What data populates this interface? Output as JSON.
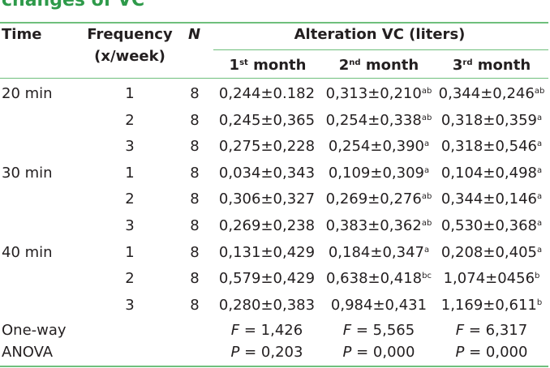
{
  "caption": "changes of VC",
  "header": {
    "time": "Time",
    "frequency_line1": "Frequency",
    "frequency_line2": "(x/week)",
    "n": "N",
    "alteration": "Alteration VC (liters)",
    "months": [
      {
        "num": "1",
        "sup": "st",
        "word": "month"
      },
      {
        "num": "2",
        "sup": "nd",
        "word": "month"
      },
      {
        "num": "3",
        "sup": "rd",
        "word": "month"
      }
    ]
  },
  "rows": [
    {
      "time": "20 min",
      "freq": "1",
      "n": "8",
      "m1": "0,244±0.182",
      "m1s": "",
      "m2": "0,313±0,210",
      "m2s": "ab",
      "m3": "0,344±0,246",
      "m3s": "ab"
    },
    {
      "time": "",
      "freq": "2",
      "n": "8",
      "m1": "0,245±0,365",
      "m1s": "",
      "m2": "0,254±0,338",
      "m2s": "ab",
      "m3": "0,318±0,359",
      "m3s": "a"
    },
    {
      "time": "",
      "freq": "3",
      "n": "8",
      "m1": "0,275±0,228",
      "m1s": "",
      "m2": "0,254±0,390",
      "m2s": "a",
      "m3": "0,318±0,546",
      "m3s": "a"
    },
    {
      "time": "30 min",
      "freq": "1",
      "n": "8",
      "m1": "0,034±0,343",
      "m1s": "",
      "m2": "0,109±0,309",
      "m2s": "a",
      "m3": "0,104±0,498",
      "m3s": "a"
    },
    {
      "time": "",
      "freq": "2",
      "n": "8",
      "m1": "0,306±0,327",
      "m1s": "",
      "m2": "0,269±0,276",
      "m2s": "ab",
      "m3": "0,344±0,146",
      "m3s": "a"
    },
    {
      "time": "",
      "freq": "3",
      "n": "8",
      "m1": "0,269±0,238",
      "m1s": "",
      "m2": "0,383±0,362",
      "m2s": "ab",
      "m3": "0,530±0,368",
      "m3s": "a"
    },
    {
      "time": "40 min",
      "freq": "1",
      "n": "8",
      "m1": "0,131±0,429",
      "m1s": "",
      "m2": "0,184±0,347",
      "m2s": "a",
      "m3": "0,208±0,405",
      "m3s": "a"
    },
    {
      "time": "",
      "freq": "2",
      "n": "8",
      "m1": "0,579±0,429",
      "m1s": "",
      "m2": "0,638±0,418",
      "m2s": "bc",
      "m3": "1,074±0456",
      "m3s": "b"
    },
    {
      "time": "",
      "freq": "3",
      "n": "8",
      "m1": "0,280±0,383",
      "m1s": "",
      "m2": "0,984±0,431",
      "m2s": "",
      "m3": "1,169±0,611",
      "m3s": "b"
    }
  ],
  "anova": {
    "label1": "One-way",
    "label2": "ANOVA",
    "f_symbol": "F",
    "p_symbol": "P",
    "f": [
      " = 1,426",
      " = 5,565",
      " = 6,317"
    ],
    "p": [
      " = 0,203",
      " = 0,000",
      " = 0,000"
    ]
  },
  "colors": {
    "rule": "#6fbf7c",
    "caption": "#2e9a4a",
    "text": "#231f20"
  }
}
